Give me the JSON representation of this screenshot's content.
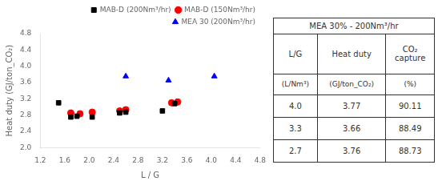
{
  "chart_data": {
    "type": "scatter",
    "x_label": "L / G",
    "y_label": "Heat duty (GJ/ton_CO₂)",
    "series": [
      {
        "name": "MAB-D (200Nm³/hr)",
        "color": "black",
        "marker": "square",
        "x": [
          1.5,
          1.7,
          1.8,
          2.05,
          2.5,
          2.6,
          3.2,
          3.4
        ],
        "values": [
          3.1,
          2.75,
          2.77,
          2.75,
          2.85,
          2.87,
          2.9,
          3.08
        ]
      },
      {
        "name": "MAB-D (150Nm³/hr)",
        "color": "red",
        "marker": "circle",
        "x": [
          1.7,
          1.85,
          2.05,
          2.5,
          2.6,
          3.35,
          3.45
        ],
        "values": [
          2.85,
          2.83,
          2.87,
          2.9,
          2.93,
          3.1,
          3.12
        ]
      },
      {
        "name": "MEA 30 (200Nm³/hr)",
        "color": "blue",
        "marker": "triangle",
        "x": [
          2.6,
          3.3,
          4.05
        ],
        "values": [
          3.75,
          3.65,
          3.75
        ]
      }
    ],
    "xlim": [
      1.2,
      4.8
    ],
    "ylim": [
      2.0,
      4.8
    ],
    "xticks": [
      1.2,
      1.6,
      {
        "value": 2.0,
        "label": "2.0"
      },
      2.4,
      2.8,
      3.2,
      3.6,
      {
        "value": 4.0,
        "label": "4.0"
      },
      4.4,
      4.8
    ],
    "yticks": [
      {
        "value": 2.0,
        "label": "2.0"
      },
      2.4,
      2.8,
      3.2,
      3.6,
      {
        "value": 4.0,
        "label": "4.0"
      },
      4.4,
      4.8
    ],
    "grid": false,
    "legend": "upper right",
    "table": {
      "title": "MEA 30% - 200Nm³/hr",
      "col_headers": [
        "L/G",
        "Heat duty",
        "CO₂\ncapture"
      ],
      "col_subheaders": [
        "(L/Nm³)",
        "(GJ/ton_CO₂)",
        "(%)"
      ],
      "rows": [
        [
          "4.0",
          "3.77",
          "90.11"
        ],
        [
          "3.3",
          "3.66",
          "88.49"
        ],
        [
          "2.7",
          "3.76",
          "88.73"
        ]
      ]
    }
  }
}
